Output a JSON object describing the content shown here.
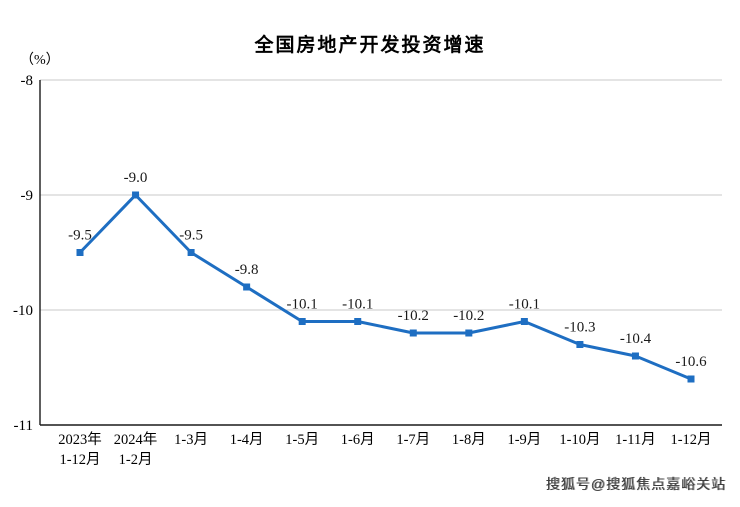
{
  "page": {
    "title": "全国房地产开发投资增速",
    "unit_label": "（%）",
    "watermark": "搜狐号@搜狐焦点嘉峪关站"
  },
  "chart_data": {
    "type": "line",
    "title": "全国房地产开发投资增速",
    "ylabel": "（%）",
    "categories": [
      "2023年\n1-12月",
      "2024年\n1-2月",
      "1-3月",
      "1-4月",
      "1-5月",
      "1-6月",
      "1-7月",
      "1-8月",
      "1-9月",
      "1-10月",
      "1-11月",
      "1-12月"
    ],
    "values": [
      -9.5,
      -9.0,
      -9.5,
      -9.8,
      -10.1,
      -10.1,
      -10.2,
      -10.2,
      -10.1,
      -10.3,
      -10.4,
      -10.6
    ],
    "labels": [
      "-9.5",
      "-9.0",
      "-9.5",
      "-9.8",
      "-10.1",
      "-10.1",
      "-10.2",
      "-10.2",
      "-10.1",
      "-10.3",
      "-10.4",
      "-10.6"
    ],
    "yticks": [
      -8,
      -9,
      -10,
      -11
    ],
    "ylim": [
      -11,
      -8
    ],
    "grid": true,
    "legend": "none",
    "line_color": "#1e6ec2",
    "grid_color": "#c8c8c8",
    "axis_color": "#1a1a1a",
    "label_color": "#1a1a1a"
  }
}
